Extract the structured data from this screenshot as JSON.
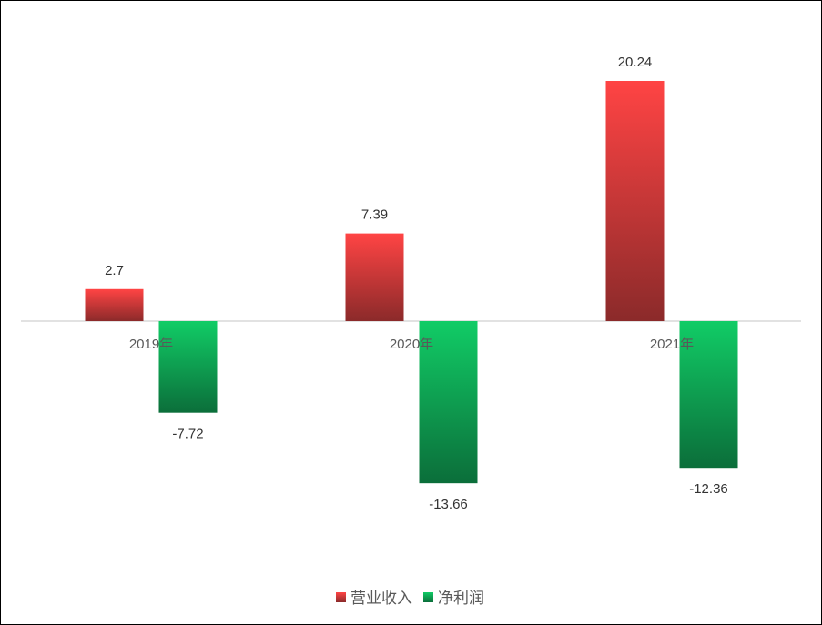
{
  "chart_data": {
    "type": "bar",
    "categories": [
      "2019年",
      "2020年",
      "2021年"
    ],
    "series": [
      {
        "name": "营业收入",
        "values": [
          2.7,
          7.39,
          20.24
        ],
        "labels": [
          "2.7",
          "7.39",
          "20.24"
        ],
        "color_top": "#ff4444",
        "color_bottom": "#8b2a2a"
      },
      {
        "name": "净利润",
        "values": [
          -7.72,
          -13.66,
          -12.36
        ],
        "labels": [
          "-7.72",
          "-13.66",
          "-12.36"
        ],
        "color_top": "#11cc66",
        "color_bottom": "#0b6e3a"
      }
    ],
    "legend_position": "bottom",
    "grid": false,
    "title": "",
    "xlabel": "",
    "ylabel": "",
    "ylim": [
      -20.2,
      21.2
    ]
  }
}
